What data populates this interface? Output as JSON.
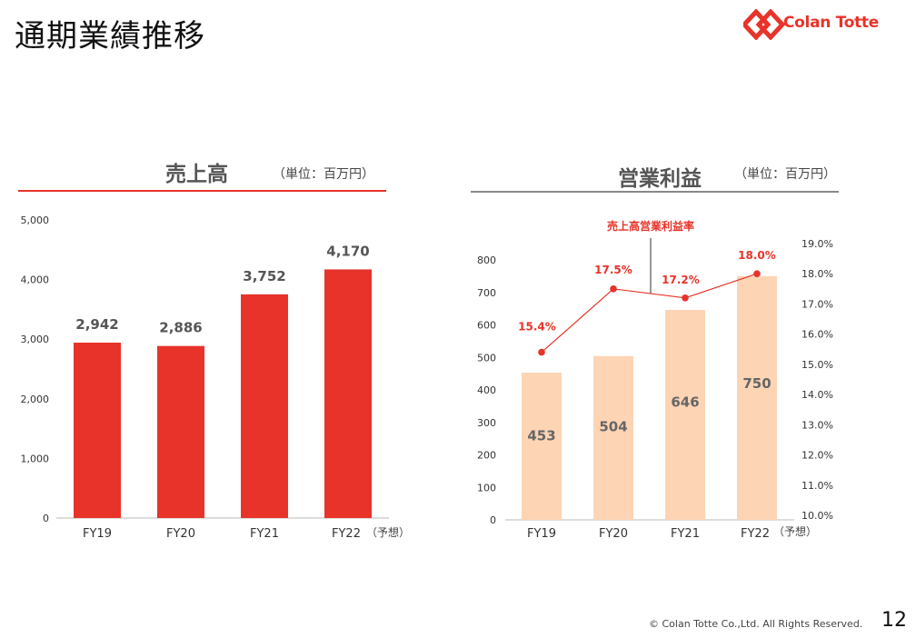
{
  "header": {
    "title": "通期業績推移",
    "logo_text": "Colan Totte"
  },
  "colors": {
    "accent": "#e8332a",
    "sales_bar": "#e8332a",
    "op_bar": "#fdd4b4",
    "op_line": "#e8332a",
    "rule_gray": "#888888"
  },
  "chart_data": [
    {
      "type": "bar",
      "title": "売上高",
      "unit": "（単位：百万円）",
      "categories": [
        "FY19",
        "FY20",
        "FY21",
        "FY22"
      ],
      "category_note": "（予想）",
      "values": [
        2942,
        2886,
        3752,
        4170
      ],
      "value_labels": [
        "2,942",
        "2,886",
        "3,752",
        "4,170"
      ],
      "ylim": [
        0,
        5000
      ],
      "yticks": [
        "0",
        "1,000",
        "2,000",
        "3,000",
        "4,000",
        "5,000"
      ]
    },
    {
      "type": "bar+line",
      "title": "営業利益",
      "unit": "（単位：百万円）",
      "categories": [
        "FY19",
        "FY20",
        "FY21",
        "FY22"
      ],
      "category_note": "（予想）",
      "series": [
        {
          "name": "",
          "type": "bar",
          "values": [
            453,
            504,
            646,
            750
          ],
          "labels": [
            "453",
            "504",
            "646",
            "750"
          ]
        },
        {
          "name": "売上高営業利益率",
          "type": "line",
          "axis": "right",
          "values": [
            15.4,
            17.5,
            17.2,
            18.0
          ],
          "labels": [
            "15.4%",
            "17.5%",
            "17.2%",
            "18.0%"
          ]
        }
      ],
      "ylim": [
        0,
        800
      ],
      "yticks": [
        "0",
        "100",
        "200",
        "300",
        "400",
        "500",
        "600",
        "700",
        "800"
      ],
      "y2lim": [
        10.0,
        19.0
      ],
      "y2ticks": [
        "10.0%",
        "11.0%",
        "12.0%",
        "13.0%",
        "14.0%",
        "15.0%",
        "16.0%",
        "17.0%",
        "18.0%",
        "19.0%"
      ]
    }
  ],
  "footer": {
    "copyright": "© Colan Totte Co.,Ltd. All Rights Reserved.",
    "page_number": "12"
  }
}
